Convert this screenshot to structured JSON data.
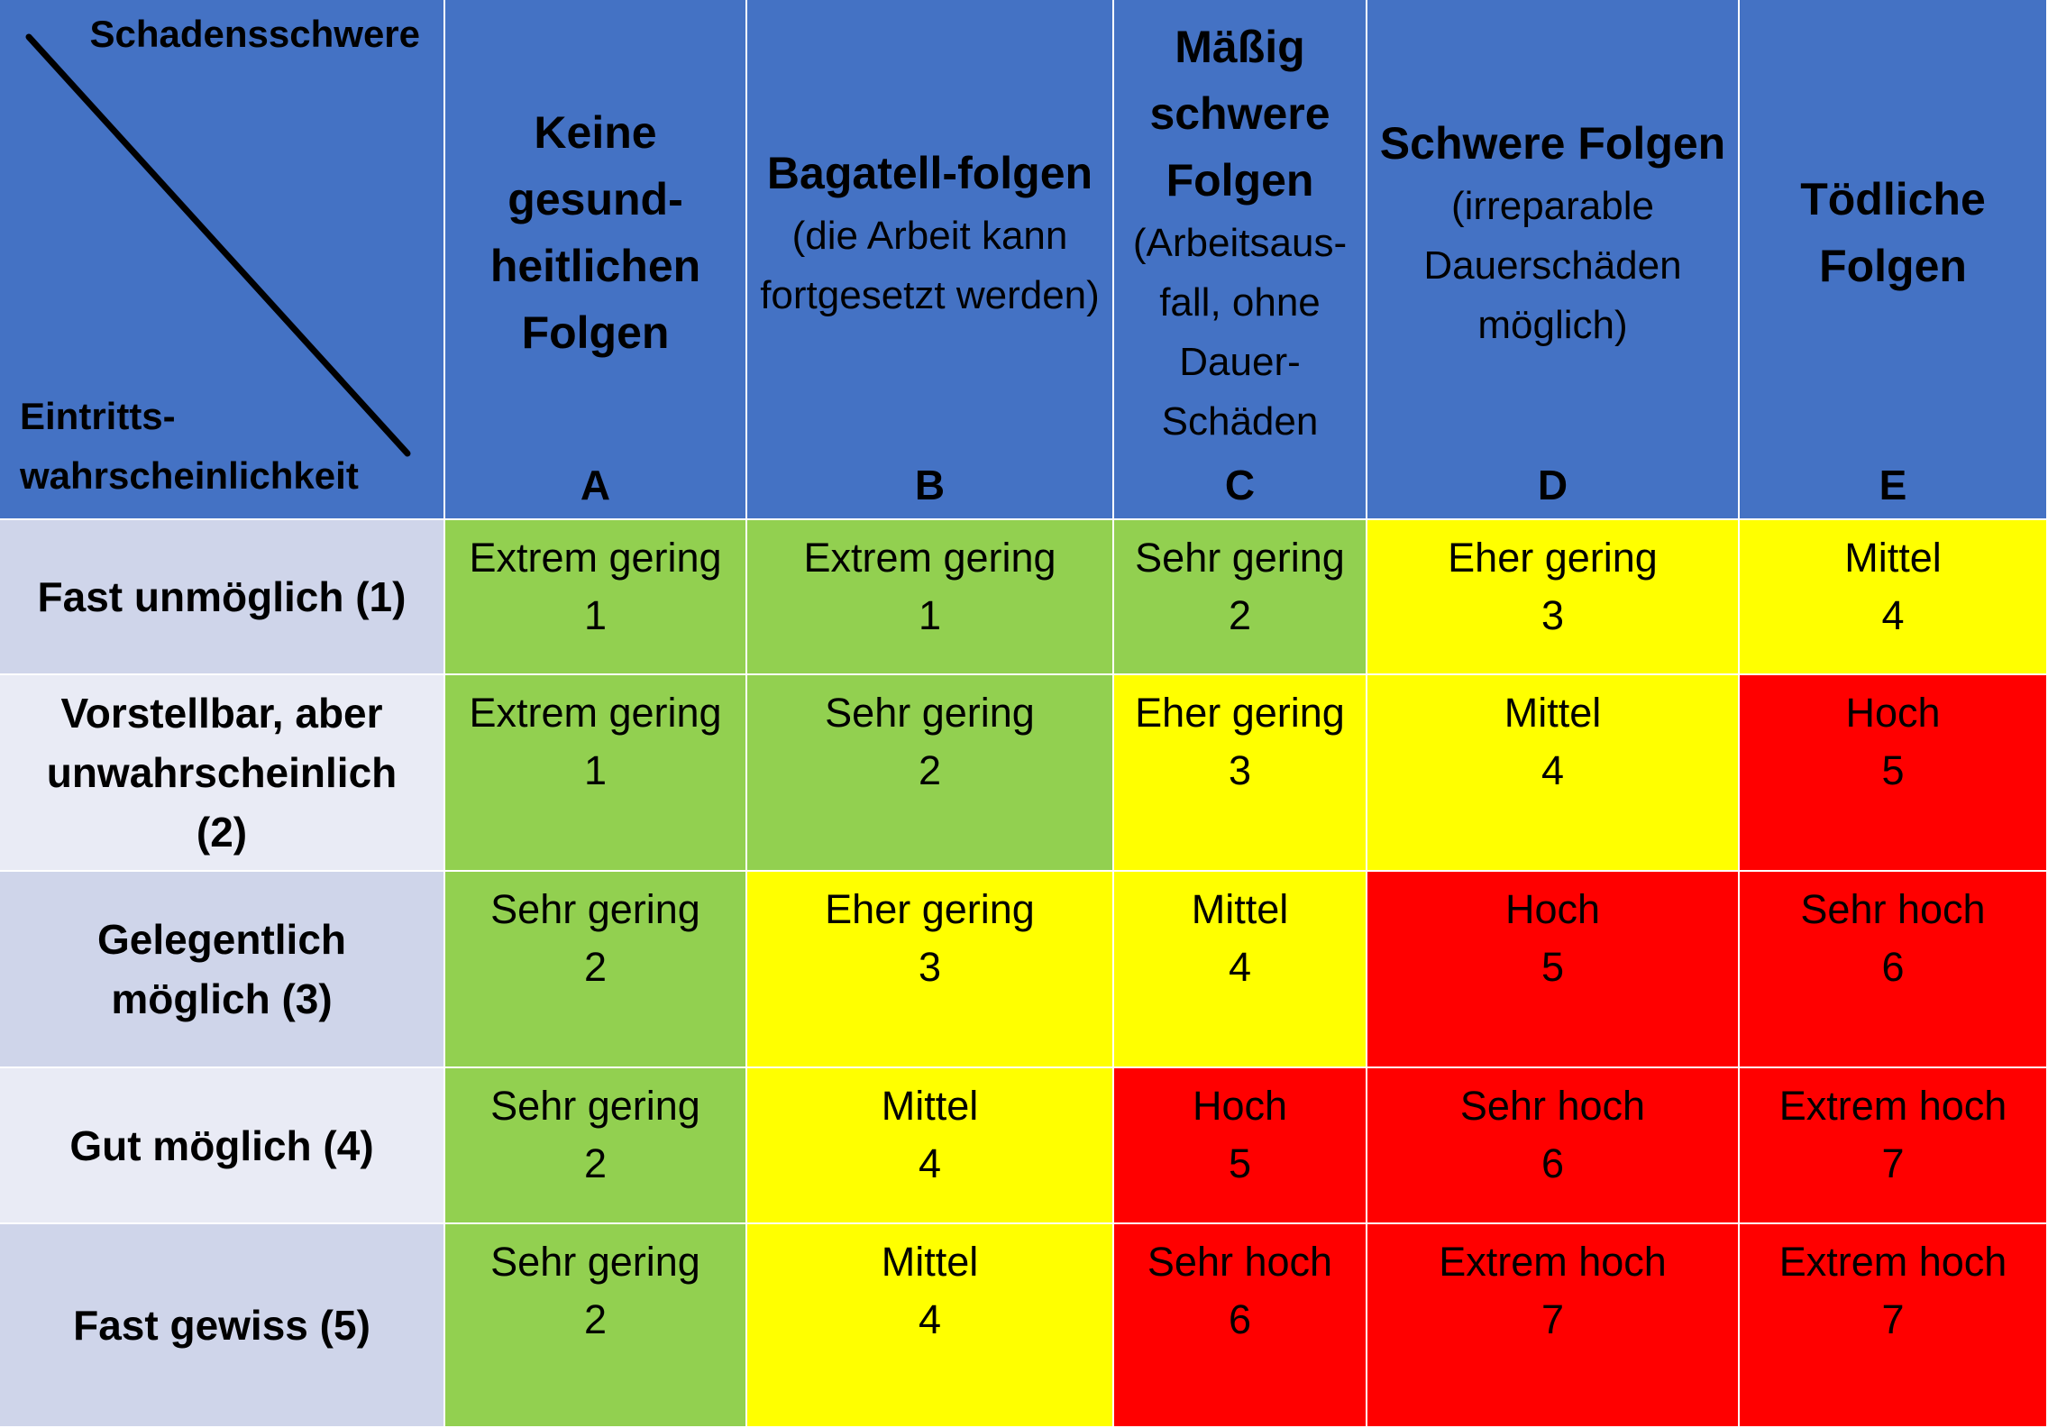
{
  "corner": {
    "top_label": "Schadensschwere",
    "bottom_label": "Eintritts-\nwahrscheinlichkeit"
  },
  "columns": [
    {
      "title": "Keine gesund-heitlichen Folgen",
      "subtitle": "",
      "letter": "A"
    },
    {
      "title": "Bagatell-folgen",
      "subtitle": "(die Arbeit kann fortgesetzt werden)",
      "letter": "B"
    },
    {
      "title": "Mäßig schwere Folgen",
      "subtitle": "(Arbeitsaus-fall, ohne Dauer-Schäden",
      "letter": "C"
    },
    {
      "title": "Schwere Folgen",
      "subtitle": "(irreparable Dauerschäden möglich)",
      "letter": "D"
    },
    {
      "title": "Tödliche Folgen",
      "subtitle": "",
      "letter": "E"
    }
  ],
  "colors": {
    "header": "#4472C4",
    "green": "#92D050",
    "yellow": "#FFFF00",
    "red": "#FF0000"
  },
  "rows": [
    {
      "label": "Fast unmöglich (1)",
      "cells": [
        {
          "text": "Extrem gering",
          "value": "1",
          "color": "green"
        },
        {
          "text": "Extrem gering",
          "value": "1",
          "color": "green"
        },
        {
          "text": "Sehr gering",
          "value": "2",
          "color": "green"
        },
        {
          "text": "Eher gering",
          "value": "3",
          "color": "yellow"
        },
        {
          "text": "Mittel",
          "value": "4",
          "color": "yellow"
        }
      ]
    },
    {
      "label": "Vorstellbar, aber unwahrscheinlich (2)",
      "cells": [
        {
          "text": "Extrem gering",
          "value": "1",
          "color": "green"
        },
        {
          "text": "Sehr gering",
          "value": "2",
          "color": "green"
        },
        {
          "text": "Eher gering",
          "value": "3",
          "color": "yellow"
        },
        {
          "text": "Mittel",
          "value": "4",
          "color": "yellow"
        },
        {
          "text": "Hoch",
          "value": "5",
          "color": "red"
        }
      ]
    },
    {
      "label": "Gelegentlich möglich (3)",
      "cells": [
        {
          "text": "Sehr gering",
          "value": "2",
          "color": "green"
        },
        {
          "text": "Eher gering",
          "value": "3",
          "color": "yellow"
        },
        {
          "text": "Mittel",
          "value": "4",
          "color": "yellow"
        },
        {
          "text": "Hoch",
          "value": "5",
          "color": "red"
        },
        {
          "text": "Sehr hoch",
          "value": "6",
          "color": "red"
        }
      ]
    },
    {
      "label": "Gut möglich (4)",
      "cells": [
        {
          "text": "Sehr gering",
          "value": "2",
          "color": "green"
        },
        {
          "text": "Mittel",
          "value": "4",
          "color": "yellow"
        },
        {
          "text": "Hoch",
          "value": "5",
          "color": "red"
        },
        {
          "text": "Sehr hoch",
          "value": "6",
          "color": "red"
        },
        {
          "text": "Extrem hoch",
          "value": "7",
          "color": "red"
        }
      ]
    },
    {
      "label": "Fast gewiss (5)",
      "cells": [
        {
          "text": "Sehr gering",
          "value": "2",
          "color": "green"
        },
        {
          "text": "Mittel",
          "value": "4",
          "color": "yellow"
        },
        {
          "text": "Sehr hoch",
          "value": "6",
          "color": "red"
        },
        {
          "text": "Extrem hoch",
          "value": "7",
          "color": "red"
        },
        {
          "text": "Extrem hoch",
          "value": "7",
          "color": "red"
        }
      ]
    }
  ]
}
